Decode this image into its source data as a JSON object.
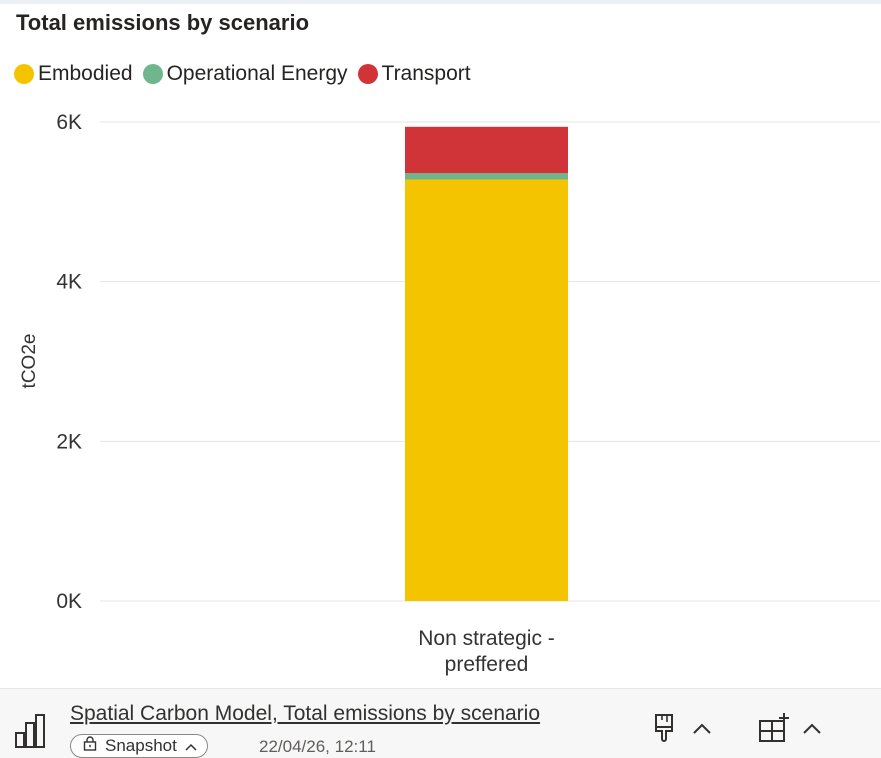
{
  "chart_data": {
    "type": "bar",
    "stacked": true,
    "title": "Total emissions by scenario",
    "categories": [
      "Non strategic -\npreffered"
    ],
    "category_lines": [
      "Non strategic -",
      "preffered"
    ],
    "series": [
      {
        "name": "Embodied",
        "values": [
          5280
        ],
        "color": "#F5C400"
      },
      {
        "name": "Operational Energy",
        "values": [
          80
        ],
        "color": "#6FB58E"
      },
      {
        "name": "Transport",
        "values": [
          580
        ],
        "color": "#D13438"
      }
    ],
    "ylabel": "tCO2e",
    "xlabel": "",
    "ylim": [
      0,
      6000
    ],
    "yticks": [
      0,
      2000,
      4000,
      6000
    ],
    "ytick_labels": [
      "0K",
      "2K",
      "4K",
      "6K"
    ],
    "grid": true,
    "legend_position": "top-left"
  },
  "footer": {
    "source_link": "Spatial Carbon Model, Total emissions by scenario",
    "snapshot_label": "Snapshot",
    "timestamp": "22/04/26, 12:11"
  },
  "icons": {
    "chart": "bar-chart-icon",
    "lock": "lock-icon",
    "format": "paintbrush-icon",
    "add": "add-visual-icon",
    "chevron": "chevron-up-icon"
  }
}
